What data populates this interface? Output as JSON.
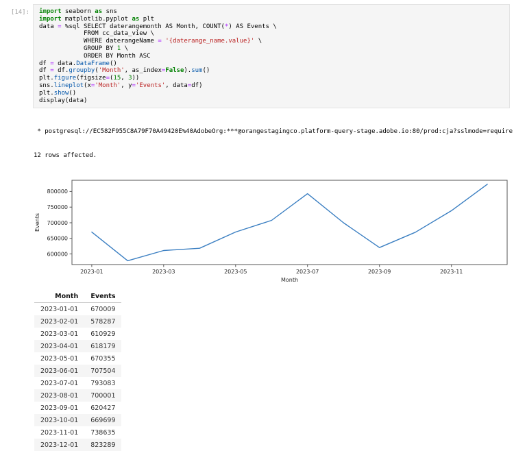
{
  "cell": {
    "prompt": "[14]:",
    "code_lines": [
      [
        [
          "k",
          "import"
        ],
        [
          "p",
          " seaborn "
        ],
        [
          "k",
          "as"
        ],
        [
          "p",
          " sns"
        ]
      ],
      [
        [
          "k",
          "import"
        ],
        [
          "p",
          " matplotlib.pyplot "
        ],
        [
          "k",
          "as"
        ],
        [
          "p",
          " plt"
        ]
      ],
      [
        [
          "p",
          "data "
        ],
        [
          "o",
          "="
        ],
        [
          "p",
          " %sql SELECT daterangemonth AS Month, COUNT("
        ],
        [
          "o",
          "*"
        ],
        [
          "p",
          ") AS Events \\"
        ]
      ],
      [
        [
          "p",
          "            FROM cc_data_view \\"
        ]
      ],
      [
        [
          "p",
          "            WHERE daterangeName "
        ],
        [
          "o",
          "="
        ],
        [
          "p",
          " "
        ],
        [
          "s",
          "'{daterange_name.value}'"
        ],
        [
          "p",
          " \\"
        ]
      ],
      [
        [
          "p",
          "            GROUP BY "
        ],
        [
          "n",
          "1"
        ],
        [
          "p",
          " \\"
        ]
      ],
      [
        [
          "p",
          "            ORDER BY Month ASC"
        ]
      ],
      [
        [
          "p",
          "df "
        ],
        [
          "o",
          "="
        ],
        [
          "p",
          " data."
        ],
        [
          "f",
          "DataFrame"
        ],
        [
          "p",
          "()"
        ]
      ],
      [
        [
          "p",
          "df "
        ],
        [
          "o",
          "="
        ],
        [
          "p",
          " df."
        ],
        [
          "f",
          "groupby"
        ],
        [
          "p",
          "("
        ],
        [
          "s",
          "'Month'"
        ],
        [
          "p",
          ", as_index"
        ],
        [
          "o",
          "="
        ],
        [
          "k",
          "False"
        ],
        [
          "p",
          ")."
        ],
        [
          "f",
          "sum"
        ],
        [
          "p",
          "()"
        ]
      ],
      [
        [
          "p",
          "plt."
        ],
        [
          "f",
          "figure"
        ],
        [
          "p",
          "(figsize"
        ],
        [
          "o",
          "="
        ],
        [
          "p",
          "("
        ],
        [
          "n",
          "15"
        ],
        [
          "p",
          ", "
        ],
        [
          "n",
          "3"
        ],
        [
          "p",
          "))"
        ]
      ],
      [
        [
          "p",
          "sns."
        ],
        [
          "f",
          "lineplot"
        ],
        [
          "p",
          "(x"
        ],
        [
          "o",
          "="
        ],
        [
          "s",
          "'Month'"
        ],
        [
          "p",
          ", y"
        ],
        [
          "o",
          "="
        ],
        [
          "s",
          "'Events'"
        ],
        [
          "p",
          ", data"
        ],
        [
          "o",
          "="
        ],
        [
          "p",
          "df)"
        ]
      ],
      [
        [
          "p",
          "plt."
        ],
        [
          "f",
          "show"
        ],
        [
          "p",
          "()"
        ]
      ],
      [
        [
          "p",
          "display(data)"
        ]
      ]
    ]
  },
  "output": {
    "connection_line": " * postgresql://EC582F955C8A79F70A49420E%40AdobeOrg:***@orangestagingco.platform-query-stage.adobe.io:80/prod:cja?sslmode=require",
    "rows_affected": "12 rows affected."
  },
  "chart_data": {
    "type": "line",
    "title": "",
    "xlabel": "Month",
    "ylabel": "Events",
    "x": [
      "2023-01",
      "2023-02",
      "2023-03",
      "2023-04",
      "2023-05",
      "2023-06",
      "2023-07",
      "2023-08",
      "2023-09",
      "2023-10",
      "2023-11",
      "2023-12"
    ],
    "values": [
      670009,
      578287,
      610929,
      618179,
      670355,
      707504,
      793083,
      700001,
      620427,
      669699,
      738635,
      823289
    ],
    "x_tick_indices": [
      0,
      2,
      4,
      6,
      8,
      10
    ],
    "x_tick_labels": [
      "2023-01",
      "2023-03",
      "2023-05",
      "2023-07",
      "2023-09",
      "2023-11"
    ],
    "y_ticks": [
      600000,
      650000,
      700000,
      750000,
      800000
    ],
    "ylim": [
      566000,
      836000
    ],
    "xlim_pad": 0.55,
    "line_color": "#3b7fc2",
    "spine_color": "#555555",
    "tick_label_color": "#262626",
    "grid": false,
    "legend": null
  },
  "table": {
    "columns": [
      "Month",
      "Events"
    ],
    "rows": [
      [
        "2023-01-01",
        "670009"
      ],
      [
        "2023-02-01",
        "578287"
      ],
      [
        "2023-03-01",
        "610929"
      ],
      [
        "2023-04-01",
        "618179"
      ],
      [
        "2023-05-01",
        "670355"
      ],
      [
        "2023-06-01",
        "707504"
      ],
      [
        "2023-07-01",
        "793083"
      ],
      [
        "2023-08-01",
        "700001"
      ],
      [
        "2023-09-01",
        "620427"
      ],
      [
        "2023-10-01",
        "669699"
      ],
      [
        "2023-11-01",
        "738635"
      ],
      [
        "2023-12-01",
        "823289"
      ]
    ]
  }
}
